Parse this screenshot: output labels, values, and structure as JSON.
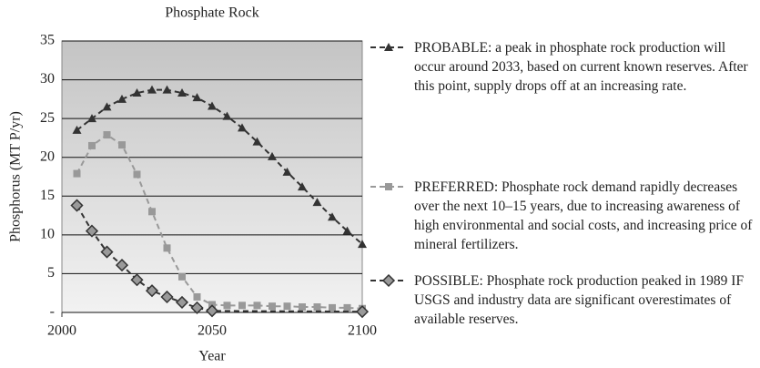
{
  "chart_data": {
    "type": "line",
    "title": "Phosphate Rock",
    "xlabel": "Year",
    "ylabel": "Phosphorus (MT P/yr)",
    "xlim": [
      2000,
      2100
    ],
    "xticks": [
      2000,
      2050,
      2100
    ],
    "ylim": [
      0,
      35
    ],
    "yticks": [
      {
        "value": 0,
        "label": "-"
      },
      5,
      10,
      15,
      20,
      25,
      30,
      35
    ],
    "grid": true,
    "legend": "right",
    "series": [
      {
        "name": "PROBABLE: a peak in phosphate rock production will occur around 2033, based on current known reserves. After this point, supply drops off at an increasing rate.",
        "color": "#333333",
        "marker": "triangle",
        "x": [
          2005,
          2010,
          2015,
          2020,
          2025,
          2030,
          2035,
          2040,
          2045,
          2050,
          2055,
          2060,
          2065,
          2070,
          2075,
          2080,
          2085,
          2090,
          2095,
          2100
        ],
        "values": [
          23.5,
          25,
          26.5,
          27.5,
          28.3,
          28.7,
          28.7,
          28.3,
          27.7,
          26.6,
          25.3,
          23.8,
          22,
          20.1,
          18.1,
          16.2,
          14.2,
          12.3,
          10.5,
          8.8
        ]
      },
      {
        "name": "PREFERRED: Phosphate rock demand rapidly decreases over the next 10–15 years, due to increasing awareness of high environmental and social costs, and increasing price of mineral fertilizers.",
        "color": "#999999",
        "marker": "square",
        "x": [
          2005,
          2010,
          2015,
          2020,
          2025,
          2030,
          2035,
          2040,
          2045,
          2050,
          2055,
          2060,
          2065,
          2070,
          2075,
          2080,
          2085,
          2090,
          2095,
          2100
        ],
        "values": [
          17.9,
          21.5,
          22.9,
          21.6,
          17.8,
          13,
          8.3,
          4.6,
          2,
          1,
          0.9,
          0.9,
          0.9,
          0.8,
          0.8,
          0.7,
          0.7,
          0.6,
          0.6,
          0.5
        ]
      },
      {
        "name": "POSSIBLE: Phosphate rock production peaked in 1989 IF USGS and industry data are significant overestimates of available reserves.",
        "color": "#333333",
        "marker": "diamond",
        "x": [
          2005,
          2010,
          2015,
          2020,
          2025,
          2030,
          2035,
          2040,
          2045,
          2050,
          2100
        ],
        "values": [
          13.8,
          10.5,
          7.8,
          6.1,
          4.2,
          2.8,
          2,
          1.3,
          0.6,
          0.2,
          0.1
        ]
      }
    ]
  }
}
